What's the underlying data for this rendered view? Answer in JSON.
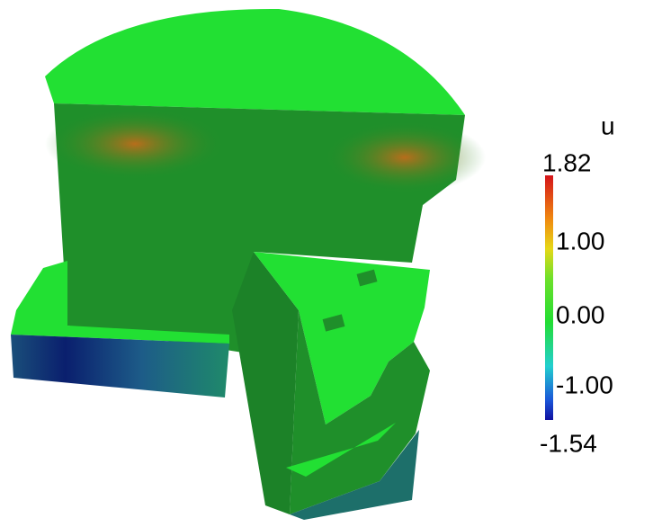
{
  "colorbar": {
    "title": "u",
    "labels": [
      "1.82",
      "1.00",
      "0.00",
      "-1.00",
      "-1.54"
    ]
  }
}
